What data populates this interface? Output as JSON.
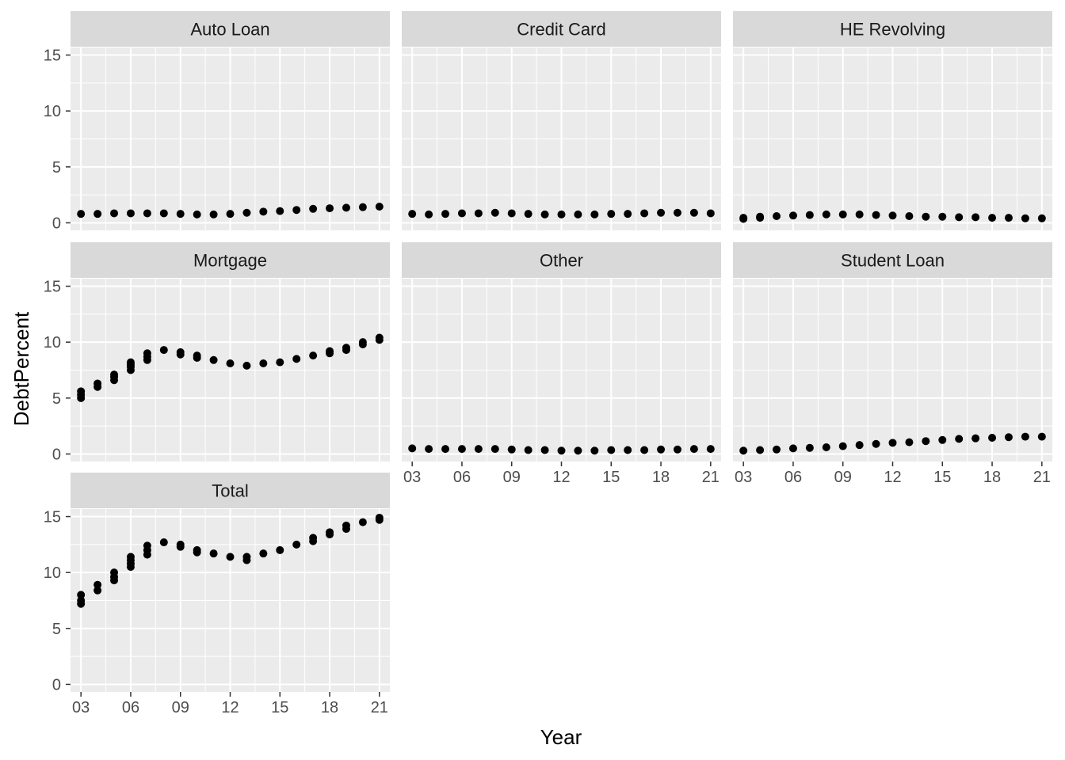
{
  "chart_data": {
    "type": "scatter",
    "facet_layout": {
      "columns": 3,
      "rows": 3,
      "panel_order": [
        "Auto Loan",
        "Credit Card",
        "HE Revolving",
        "Mortgage",
        "Other",
        "Student Loan",
        "Total"
      ]
    },
    "xlabel": "Year",
    "ylabel": "DebtPercent",
    "xlim": [
      3,
      21
    ],
    "ylim": [
      0,
      15
    ],
    "x_ticks": [
      3,
      6,
      9,
      12,
      15,
      18,
      21
    ],
    "x_tick_labels": [
      "03",
      "06",
      "09",
      "12",
      "15",
      "18",
      "21"
    ],
    "y_ticks": [
      0,
      5,
      10,
      15
    ],
    "y_tick_labels": [
      "0",
      "5",
      "10",
      "15"
    ],
    "grid": true,
    "panel_background": "#ebebeb",
    "strip_background": "#d9d9d9",
    "point_color": "#000000",
    "panels": [
      {
        "name": "Auto Loan",
        "x": [
          3,
          4,
          5,
          6,
          7,
          8,
          9,
          10,
          11,
          12,
          13,
          14,
          15,
          16,
          17,
          18,
          19,
          20,
          21
        ],
        "y": [
          0.8,
          0.8,
          0.85,
          0.85,
          0.85,
          0.85,
          0.8,
          0.75,
          0.75,
          0.8,
          0.9,
          1.0,
          1.05,
          1.15,
          1.25,
          1.3,
          1.35,
          1.4,
          1.45
        ]
      },
      {
        "name": "Credit Card",
        "x": [
          3,
          4,
          5,
          6,
          7,
          8,
          9,
          10,
          11,
          12,
          13,
          14,
          15,
          16,
          17,
          18,
          19,
          20,
          21
        ],
        "y": [
          0.8,
          0.75,
          0.8,
          0.85,
          0.85,
          0.9,
          0.85,
          0.8,
          0.75,
          0.75,
          0.75,
          0.75,
          0.8,
          0.8,
          0.85,
          0.9,
          0.9,
          0.9,
          0.85
        ]
      },
      {
        "name": "HE Revolving",
        "x": [
          3,
          3,
          4,
          4,
          5,
          6,
          7,
          8,
          9,
          10,
          11,
          12,
          13,
          14,
          15,
          16,
          17,
          18,
          19,
          20,
          21
        ],
        "y": [
          0.35,
          0.45,
          0.45,
          0.55,
          0.6,
          0.65,
          0.7,
          0.75,
          0.75,
          0.75,
          0.7,
          0.65,
          0.6,
          0.55,
          0.55,
          0.5,
          0.5,
          0.45,
          0.45,
          0.4,
          0.4
        ]
      },
      {
        "name": "Mortgage",
        "x": [
          3,
          3,
          3,
          4,
          4,
          5,
          5,
          5,
          6,
          6,
          6,
          6,
          7,
          7,
          7,
          8,
          9,
          9,
          10,
          10,
          11,
          12,
          13,
          14,
          15,
          16,
          17,
          18,
          18,
          19,
          19,
          20,
          20,
          21,
          21
        ],
        "y": [
          5.0,
          5.3,
          5.6,
          6.0,
          6.3,
          6.6,
          6.9,
          7.1,
          7.5,
          7.8,
          8.0,
          8.2,
          8.4,
          8.7,
          9.0,
          9.3,
          8.9,
          9.1,
          8.6,
          8.8,
          8.4,
          8.1,
          7.9,
          8.1,
          8.2,
          8.5,
          8.8,
          9.0,
          9.2,
          9.3,
          9.5,
          9.8,
          10.0,
          10.2,
          10.4
        ]
      },
      {
        "name": "Other",
        "x": [
          3,
          4,
          5,
          6,
          7,
          8,
          9,
          10,
          11,
          12,
          13,
          14,
          15,
          16,
          17,
          18,
          19,
          20,
          21
        ],
        "y": [
          0.5,
          0.45,
          0.45,
          0.45,
          0.45,
          0.45,
          0.4,
          0.35,
          0.35,
          0.3,
          0.3,
          0.3,
          0.35,
          0.35,
          0.35,
          0.4,
          0.4,
          0.45,
          0.45
        ]
      },
      {
        "name": "Student Loan",
        "x": [
          3,
          4,
          5,
          6,
          7,
          8,
          9,
          10,
          11,
          12,
          13,
          14,
          15,
          16,
          17,
          18,
          19,
          20,
          21
        ],
        "y": [
          0.3,
          0.35,
          0.4,
          0.5,
          0.55,
          0.6,
          0.7,
          0.8,
          0.9,
          1.0,
          1.05,
          1.15,
          1.25,
          1.35,
          1.4,
          1.45,
          1.5,
          1.55,
          1.55
        ]
      },
      {
        "name": "Total",
        "x": [
          3,
          3,
          3,
          4,
          4,
          5,
          5,
          5,
          6,
          6,
          6,
          6,
          7,
          7,
          7,
          8,
          9,
          9,
          10,
          10,
          11,
          12,
          13,
          13,
          14,
          15,
          16,
          17,
          17,
          18,
          18,
          19,
          19,
          20,
          21,
          21
        ],
        "y": [
          7.2,
          7.5,
          8.0,
          8.4,
          8.9,
          9.3,
          9.6,
          10.0,
          10.5,
          10.8,
          11.1,
          11.4,
          11.6,
          12.0,
          12.4,
          12.7,
          12.3,
          12.5,
          11.8,
          12.0,
          11.7,
          11.4,
          11.1,
          11.4,
          11.7,
          12.0,
          12.5,
          12.8,
          13.1,
          13.4,
          13.6,
          13.9,
          14.2,
          14.5,
          14.7,
          14.9
        ]
      }
    ]
  }
}
